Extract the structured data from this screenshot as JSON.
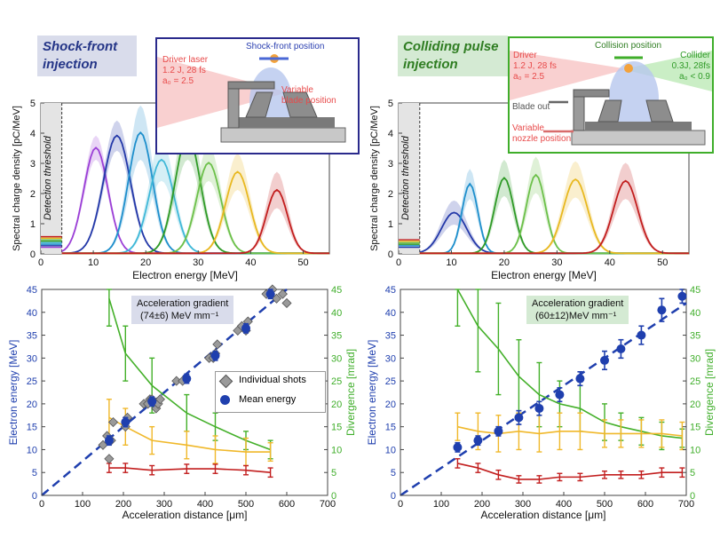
{
  "left_panel": {
    "title_line1": "Shock-front",
    "title_line2": "injection",
    "inset": {
      "driver_line1": "Driver laser",
      "driver_line2": "1.2 J, 28 fs",
      "driver_line3": "a₀ = 2.5",
      "position_label": "Shock-front position",
      "blade_label_line1": "Variable",
      "blade_label_line2": "blade position"
    },
    "gradient_line1": "Acceleration gradient",
    "gradient_line2": "(74±6)  MeV mm⁻¹",
    "legend_individual": "Individual shots",
    "legend_mean": "Mean energy"
  },
  "right_panel": {
    "title_line1": "Colliding pulse",
    "title_line2": "injection",
    "inset": {
      "driver_line1": "Driver",
      "driver_line2": "1.2 J, 28 fs",
      "driver_line3": "a₀ = 2.5",
      "collision_label": "Collision position",
      "collider_line1": "Collider",
      "collider_line2": "0.3J, 28fs",
      "collider_line3": "a₀ < 0.9",
      "blade_label": "Blade out",
      "nozzle_label_line1": "Variable",
      "nozzle_label_line2": "nozzle position"
    },
    "gradient_line1": "Acceleration gradient",
    "gradient_line2": "(60±12)MeV mm⁻¹"
  },
  "spectra_axes": {
    "xlabel": "Electron energy [MeV]",
    "ylabel": "Spectral charge density [pC/MeV]",
    "threshold_label": "Detection threshold",
    "xticks": [
      "0",
      "10",
      "20",
      "30",
      "40",
      "50"
    ],
    "yticks": [
      "0",
      "1",
      "2",
      "3",
      "4",
      "5"
    ]
  },
  "scan_axes": {
    "xlabel": "Acceleration distance [μm]",
    "ylabel_left": "Electron energy [MeV]",
    "ylabel_right": "Divergence  [mrad]",
    "xticks_left": [
      "0",
      "100",
      "200",
      "300",
      "400",
      "500",
      "600",
      "700"
    ],
    "xticks_right": [
      "0",
      "100",
      "200",
      "300",
      "400",
      "500",
      "600",
      "700"
    ],
    "yticks": [
      "0",
      "5",
      "10",
      "15",
      "20",
      "25",
      "30",
      "35",
      "40",
      "45"
    ]
  },
  "colors": {
    "blue": "#1f3fae",
    "green": "#3fae2a",
    "orange": "#f0b82a",
    "red": "#c21e1e",
    "gray": "#9a9a9a",
    "laser": "#f08a8a"
  },
  "chart_data": [
    {
      "type": "line",
      "title": "",
      "xlabel": "Electron energy [MeV]",
      "ylabel": "Spectral charge density [pC/MeV]",
      "xlim": [
        0,
        55
      ],
      "ylim": [
        0,
        5
      ],
      "detection_threshold_MeV": 4,
      "series": [
        {
          "color": "#9b3fd6",
          "peak_x": 10.5,
          "peak_y": 3.5,
          "sigma": 2.3,
          "band": 0.4
        },
        {
          "color": "#2338a8",
          "peak_x": 14.5,
          "peak_y": 3.9,
          "sigma": 2.6,
          "band": 0.5
        },
        {
          "color": "#1e8fcc",
          "peak_x": 19,
          "peak_y": 4.0,
          "sigma": 2.3,
          "band": 0.9
        },
        {
          "color": "#3fb8d8",
          "peak_x": 23,
          "peak_y": 3.1,
          "sigma": 2.4,
          "band": 0.7
        },
        {
          "color": "#2f9a27",
          "peak_x": 28,
          "peak_y": 3.9,
          "sigma": 2.4,
          "band": 0.8
        },
        {
          "color": "#6cc04a",
          "peak_x": 32,
          "peak_y": 3.0,
          "sigma": 2.3,
          "band": 0.6
        },
        {
          "color": "#e8b820",
          "peak_x": 37.5,
          "peak_y": 2.7,
          "sigma": 2.3,
          "band": 0.6
        },
        {
          "color": "#c21e1e",
          "peak_x": 45,
          "peak_y": 2.1,
          "sigma": 2.0,
          "band": 0.6
        }
      ]
    },
    {
      "type": "line",
      "title": "",
      "xlabel": "Electron energy [MeV]",
      "ylabel": "Spectral charge density [pC/MeV]",
      "xlim": [
        0,
        55
      ],
      "ylim": [
        0,
        5
      ],
      "detection_threshold_MeV": 4,
      "series": [
        {
          "color": "#2338a8",
          "peak_x": 10.5,
          "peak_y": 1.35,
          "sigma": 2.4,
          "band": 0.4
        },
        {
          "color": "#1e8fcc",
          "peak_x": 13.5,
          "peak_y": 2.3,
          "sigma": 1.5,
          "band": 0.5
        },
        {
          "color": "#2f9a27",
          "peak_x": 20,
          "peak_y": 2.5,
          "sigma": 1.8,
          "band": 0.6
        },
        {
          "color": "#6cc04a",
          "peak_x": 26,
          "peak_y": 2.6,
          "sigma": 1.8,
          "band": 0.6
        },
        {
          "color": "#e8b820",
          "peak_x": 33.5,
          "peak_y": 2.45,
          "sigma": 2.3,
          "band": 0.6
        },
        {
          "color": "#c21e1e",
          "peak_x": 43,
          "peak_y": 2.4,
          "sigma": 2.3,
          "band": 0.6
        }
      ]
    },
    {
      "type": "scatter",
      "title": "",
      "xlabel": "Acceleration distance [μm]",
      "ylabel": "Electron energy [MeV]",
      "ylabel_right": "Divergence  [mrad]",
      "xlim": [
        0,
        700
      ],
      "ylim": [
        0,
        45
      ],
      "fit_line": {
        "x": [
          0,
          600
        ],
        "y": [
          0,
          45
        ]
      },
      "individual_shots": {
        "x": [
          150,
          160,
          165,
          170,
          175,
          205,
          210,
          250,
          260,
          265,
          270,
          280,
          285,
          290,
          330,
          345,
          410,
          420,
          425,
          430,
          480,
          490,
          500,
          505,
          550,
          560,
          565,
          575,
          590,
          600
        ],
        "y": [
          11,
          13,
          8,
          12,
          16,
          15,
          17,
          20,
          20,
          21,
          21,
          19,
          20,
          21,
          25,
          25,
          30,
          30,
          31,
          33,
          36,
          37,
          36,
          38,
          44,
          44,
          45,
          43,
          44,
          42
        ]
      },
      "mean_energy": {
        "x": [
          165,
          205,
          270,
          355,
          425,
          500,
          560
        ],
        "y": [
          12,
          16,
          20.5,
          25.5,
          30.5,
          36.5,
          44
        ],
        "err": [
          1,
          1,
          1,
          1,
          1,
          1,
          1
        ]
      },
      "divergence_green": {
        "x": [
          165,
          205,
          270,
          355,
          425,
          500,
          560
        ],
        "y": [
          43,
          31,
          24,
          18,
          15,
          12,
          10
        ],
        "err": [
          6,
          6,
          6,
          4,
          3,
          2,
          2
        ]
      },
      "divergence_orange": {
        "x": [
          165,
          205,
          270,
          355,
          425,
          500,
          560
        ],
        "y": [
          17,
          15,
          12,
          11,
          10,
          9.5,
          9.5
        ],
        "err": [
          4,
          4,
          3,
          3,
          3,
          3,
          2
        ]
      },
      "divergence_red": {
        "x": [
          165,
          205,
          270,
          355,
          425,
          500,
          560
        ],
        "y": [
          6,
          6,
          5.5,
          5.8,
          5.8,
          5.5,
          5
        ],
        "err": [
          1,
          1,
          1,
          1,
          1,
          1,
          1
        ]
      }
    },
    {
      "type": "scatter",
      "title": "",
      "xlabel": "Acceleration distance [μm]",
      "ylabel": "Electron energy [MeV]",
      "ylabel_right": "Divergence  [mrad]",
      "xlim": [
        0,
        700
      ],
      "ylim": [
        0,
        45
      ],
      "fit_line": {
        "x": [
          0,
          700
        ],
        "y": [
          0,
          42
        ]
      },
      "mean_energy": {
        "x": [
          140,
          190,
          240,
          290,
          340,
          390,
          440,
          500,
          540,
          590,
          640,
          690
        ],
        "y": [
          10.5,
          12,
          14,
          17,
          19,
          22,
          25.5,
          29.5,
          32,
          35,
          40.5,
          43.5
        ],
        "err": [
          1,
          1,
          1,
          1.5,
          1.5,
          1.5,
          1.5,
          2,
          2,
          2,
          2.5,
          1.5
        ]
      },
      "divergence_green": {
        "x": [
          140,
          190,
          240,
          290,
          340,
          390,
          440,
          500,
          540,
          590,
          640,
          690
        ],
        "y": [
          45,
          37,
          32,
          26,
          22,
          20,
          19,
          16,
          15,
          14,
          13,
          12.5
        ],
        "err": [
          8,
          10,
          10,
          8,
          7,
          5,
          5,
          4,
          3,
          3,
          3,
          2
        ]
      },
      "divergence_orange": {
        "x": [
          140,
          190,
          240,
          290,
          340,
          390,
          440,
          500,
          540,
          590,
          640,
          690
        ],
        "y": [
          15,
          14,
          13.5,
          14,
          13.5,
          14,
          14,
          13.5,
          13.5,
          13.5,
          13.5,
          13
        ],
        "err": [
          3,
          4,
          4,
          4,
          4,
          4,
          4,
          3,
          3,
          3,
          3,
          3
        ]
      },
      "divergence_red": {
        "x": [
          140,
          190,
          240,
          290,
          340,
          390,
          440,
          500,
          540,
          590,
          640,
          690
        ],
        "y": [
          7,
          6,
          4.5,
          3.5,
          3.5,
          4,
          4,
          4.5,
          4.5,
          4.5,
          5,
          5
        ],
        "err": [
          1,
          1,
          1,
          0.8,
          0.8,
          0.8,
          0.8,
          0.8,
          0.8,
          0.8,
          1,
          1
        ]
      }
    }
  ]
}
